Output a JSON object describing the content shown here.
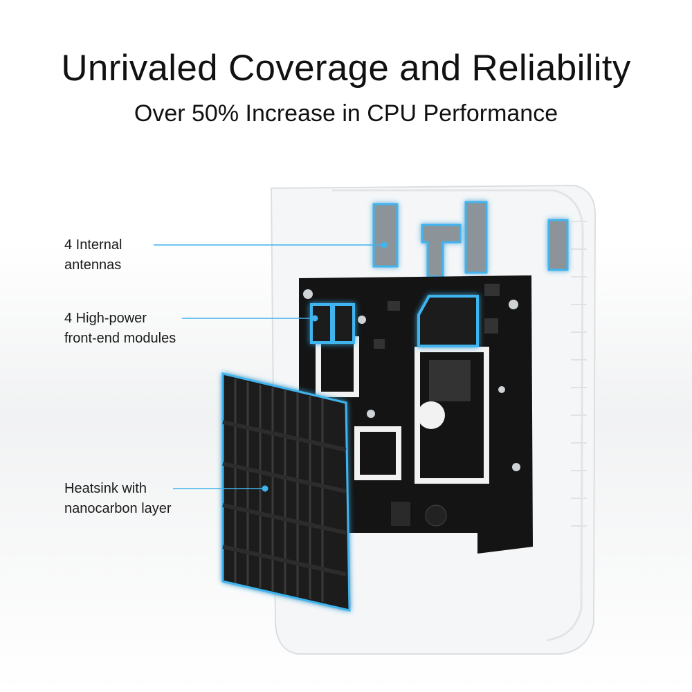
{
  "header": {
    "title": "Unrivaled Coverage and Reliability",
    "subtitle": "Over 50% Increase in CPU Performance"
  },
  "callouts": [
    {
      "line1": "4 Internal",
      "line2": "antennas"
    },
    {
      "line1": "4 High-power",
      "line2": "front-end modules"
    },
    {
      "line1": "Heatsink with",
      "line2": "nanocarbon layer"
    }
  ],
  "colors": {
    "accent": "#2aa8e6",
    "pcb": "#141414",
    "heatsink": "#1c1c1c",
    "enclosure": "#f4f5f6"
  }
}
